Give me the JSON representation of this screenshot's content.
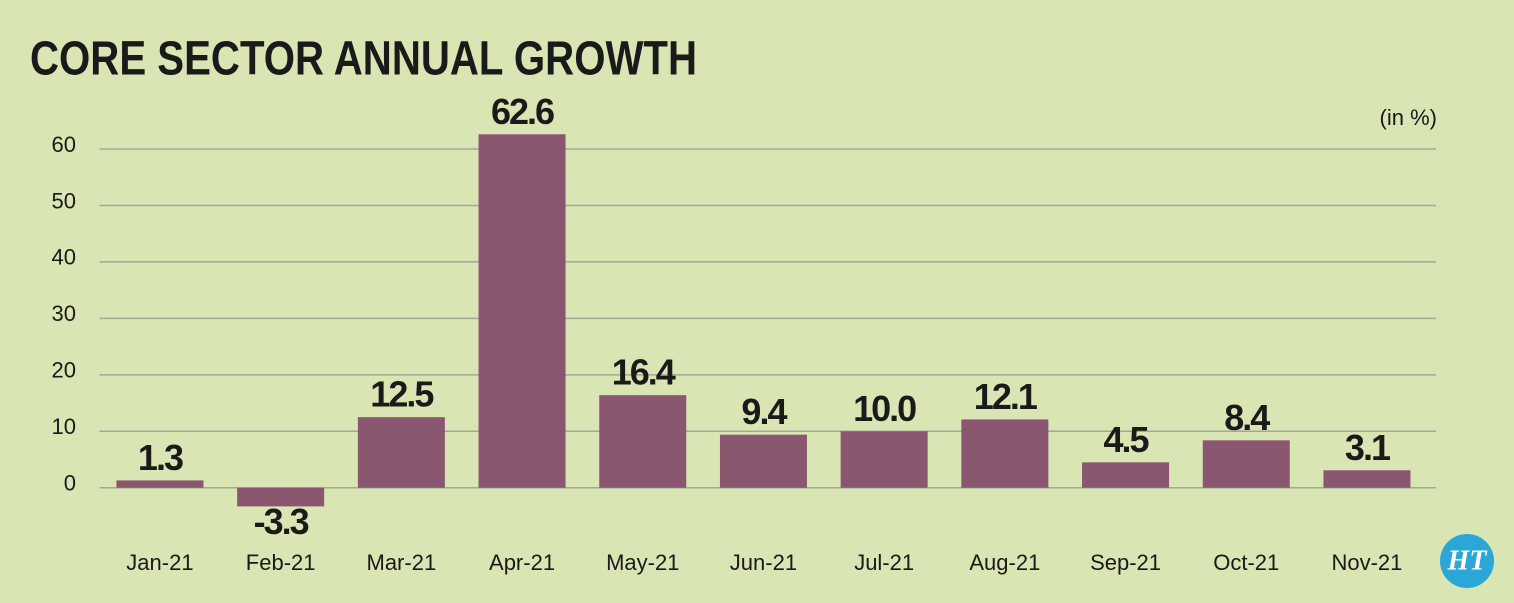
{
  "chart_data": {
    "type": "bar",
    "title": "CORE SECTOR ANNUAL GROWTH",
    "unit_label": "(in %)",
    "categories": [
      "Jan-21",
      "Feb-21",
      "Mar-21",
      "Apr-21",
      "May-21",
      "Jun-21",
      "Jul-21",
      "Aug-21",
      "Sep-21",
      "Oct-21",
      "Nov-21"
    ],
    "values": [
      1.3,
      -3.3,
      12.5,
      62.6,
      16.4,
      9.4,
      10.0,
      12.1,
      4.5,
      8.4,
      3.1
    ],
    "value_labels": [
      "1.3",
      "-3.3",
      "12.5",
      "62.6",
      "16.4",
      "9.4",
      "10.0",
      "12.1",
      "4.5",
      "8.4",
      "3.1"
    ],
    "color": "#8b5670",
    "ylim": [
      -5,
      65
    ],
    "yticks": [
      0,
      10,
      20,
      30,
      40,
      50,
      60
    ],
    "grid": true,
    "logo": "HT"
  }
}
